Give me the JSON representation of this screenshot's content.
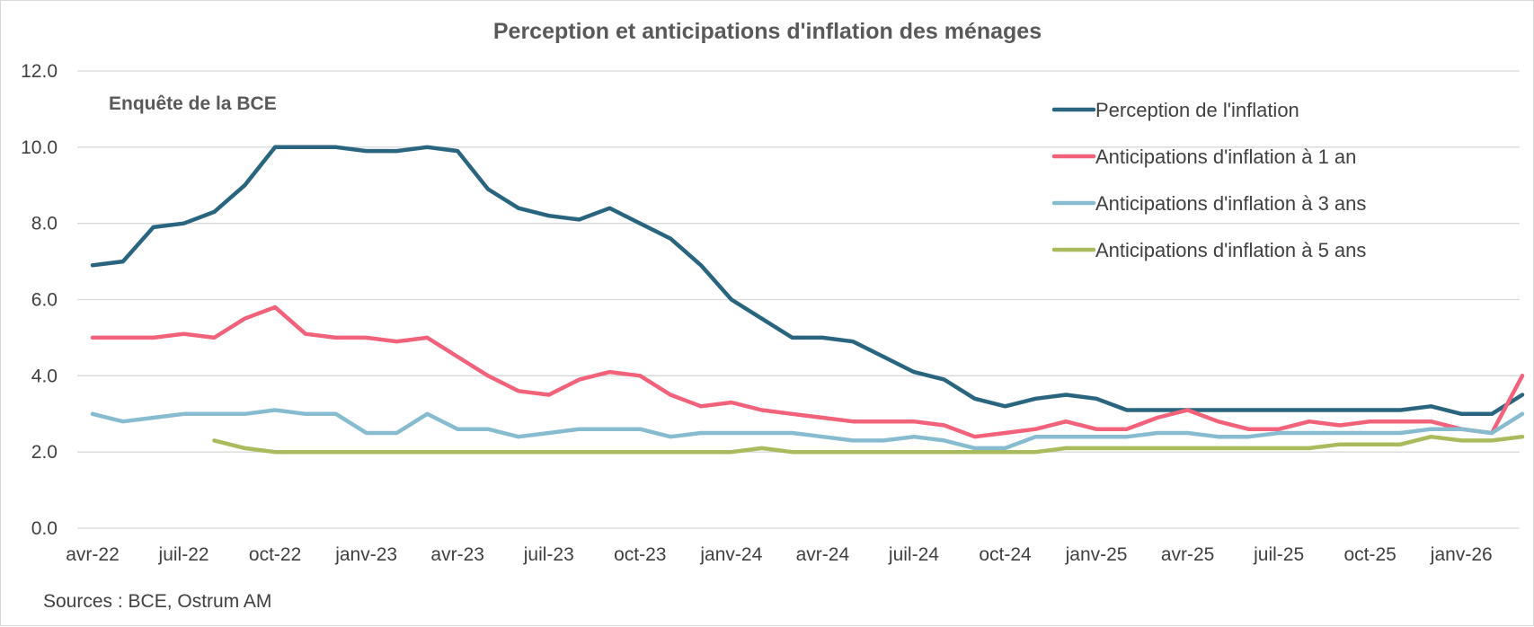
{
  "chart_data": {
    "type": "line",
    "title": "Perception et anticipations d'inflation des ménages",
    "subtitle": "Enquête de la BCE",
    "source": "Sources : BCE, Ostrum AM",
    "ylim": [
      0,
      12
    ],
    "yticks": [
      "0.0",
      "2.0",
      "4.0",
      "6.0",
      "8.0",
      "10.0",
      "12.0"
    ],
    "ytick_values": [
      0,
      2,
      4,
      6,
      8,
      10,
      12
    ],
    "x": [
      "2022-04",
      "2022-05",
      "2022-06",
      "2022-07",
      "2022-08",
      "2022-09",
      "2022-10",
      "2022-11",
      "2022-12",
      "2023-01",
      "2023-02",
      "2023-03",
      "2023-04",
      "2023-05",
      "2023-06",
      "2023-07",
      "2023-08",
      "2023-09",
      "2023-10",
      "2023-11",
      "2023-12",
      "2024-01",
      "2024-02",
      "2024-03",
      "2024-04",
      "2024-05",
      "2024-06",
      "2024-07",
      "2024-08",
      "2024-09",
      "2024-10",
      "2024-11",
      "2024-12",
      "2025-01",
      "2025-02",
      "2025-03",
      "2025-04",
      "2025-05",
      "2025-06",
      "2025-07",
      "2025-08",
      "2025-09",
      "2025-10",
      "2025-11",
      "2025-12",
      "2026-01",
      "2026-02",
      "2026-03"
    ],
    "xtick_labels": [
      "avr-22",
      "juil-22",
      "oct-22",
      "janv-23",
      "avr-23",
      "juil-23",
      "oct-23",
      "janv-24",
      "avr-24",
      "juil-24",
      "oct-24",
      "janv-25",
      "avr-25",
      "juil-25",
      "oct-25",
      "janv-26"
    ],
    "xtick_x": [
      "2022-04",
      "2022-07",
      "2022-10",
      "2023-01",
      "2023-04",
      "2023-07",
      "2023-10",
      "2024-01",
      "2024-04",
      "2024-07",
      "2024-10",
      "2025-01",
      "2025-04",
      "2025-07",
      "2025-10",
      "2026-01"
    ],
    "grid": true,
    "legend_position": "top-right",
    "series": [
      {
        "name": "Perception de l'inflation",
        "color": "#2a6580",
        "values": [
          6.9,
          7.0,
          7.9,
          8.0,
          8.3,
          9.0,
          10.0,
          10.0,
          10.0,
          9.9,
          9.9,
          10.0,
          9.9,
          8.9,
          8.4,
          8.2,
          8.1,
          8.4,
          8.0,
          7.6,
          6.9,
          6.0,
          5.5,
          5.0,
          5.0,
          4.9,
          4.5,
          4.1,
          3.9,
          3.4,
          3.2,
          3.4,
          3.5,
          3.4,
          3.1,
          3.1,
          3.1,
          3.1,
          3.1,
          3.1,
          3.1,
          3.1,
          3.1,
          3.1,
          3.2,
          3.0,
          3.0,
          3.5
        ]
      },
      {
        "name": "Anticipations d'inflation à 1 an",
        "color": "#f2637b",
        "values": [
          5.0,
          5.0,
          5.0,
          5.1,
          5.0,
          5.5,
          5.8,
          5.1,
          5.0,
          5.0,
          4.9,
          5.0,
          4.5,
          4.0,
          3.6,
          3.5,
          3.9,
          4.1,
          4.0,
          3.5,
          3.2,
          3.3,
          3.1,
          3.0,
          2.9,
          2.8,
          2.8,
          2.8,
          2.7,
          2.4,
          2.5,
          2.6,
          2.8,
          2.6,
          2.6,
          2.9,
          3.1,
          2.8,
          2.6,
          2.6,
          2.8,
          2.7,
          2.8,
          2.8,
          2.8,
          2.6,
          2.5,
          4.0
        ]
      },
      {
        "name": "Anticipations d'inflation à 3 ans",
        "color": "#87bcd0",
        "values": [
          3.0,
          2.8,
          2.9,
          3.0,
          3.0,
          3.0,
          3.1,
          3.0,
          3.0,
          2.5,
          2.5,
          3.0,
          2.6,
          2.6,
          2.4,
          2.5,
          2.6,
          2.6,
          2.6,
          2.4,
          2.5,
          2.5,
          2.5,
          2.5,
          2.4,
          2.3,
          2.3,
          2.4,
          2.3,
          2.1,
          2.1,
          2.4,
          2.4,
          2.4,
          2.4,
          2.5,
          2.5,
          2.4,
          2.4,
          2.5,
          2.5,
          2.5,
          2.5,
          2.5,
          2.6,
          2.6,
          2.5,
          3.0
        ]
      },
      {
        "name": "Anticipations d'inflation à 5 ans",
        "color": "#a9bb5c",
        "values": [
          null,
          null,
          null,
          null,
          2.3,
          2.1,
          2.0,
          2.0,
          2.0,
          2.0,
          2.0,
          2.0,
          2.0,
          2.0,
          2.0,
          2.0,
          2.0,
          2.0,
          2.0,
          2.0,
          2.0,
          2.0,
          2.1,
          2.0,
          2.0,
          2.0,
          2.0,
          2.0,
          2.0,
          2.0,
          2.0,
          2.0,
          2.1,
          2.1,
          2.1,
          2.1,
          2.1,
          2.1,
          2.1,
          2.1,
          2.1,
          2.2,
          2.2,
          2.2,
          2.4,
          2.3,
          2.3,
          2.4
        ]
      }
    ]
  }
}
